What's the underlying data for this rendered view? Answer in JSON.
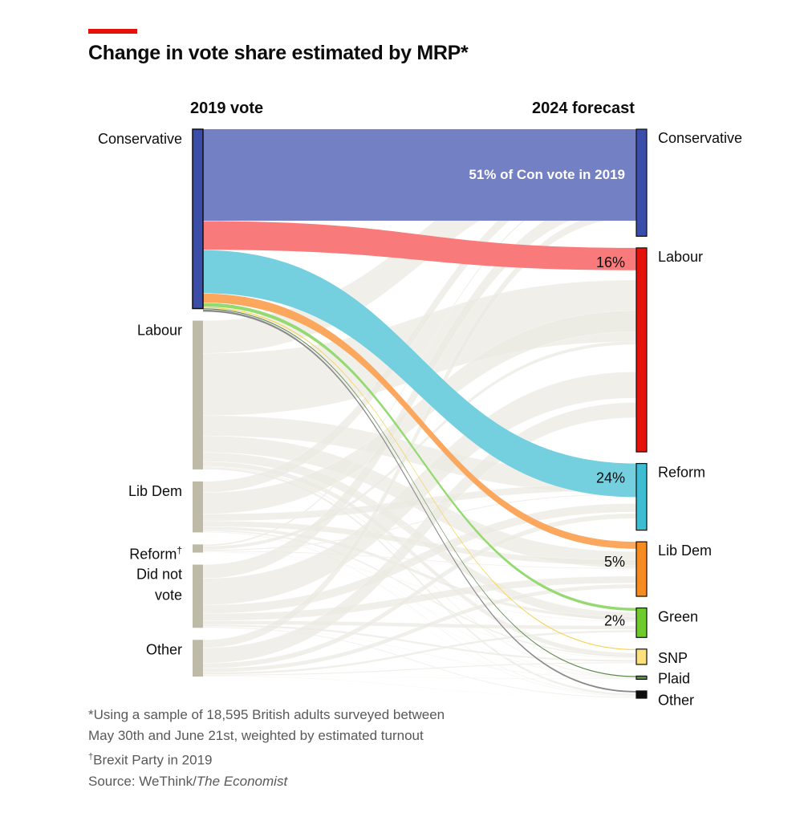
{
  "title": "Change in vote share estimated by MRP*",
  "chart_data": {
    "type": "sankey",
    "title": "Change in vote share estimated by MRP*",
    "left_header": "2019 vote",
    "right_header": "2024 forecast",
    "units": "share of 2019 Conservative voters (%)",
    "left_nodes": [
      {
        "id": "con19",
        "label": "Conservative",
        "value": 44,
        "color": "#3a4da8",
        "highlight": true
      },
      {
        "id": "lab19",
        "label": "Labour",
        "value": 36.5,
        "color": "#bdbaa8"
      },
      {
        "id": "ld19",
        "label": "Lib Dem",
        "value": 12.5,
        "color": "#bdbaa8"
      },
      {
        "id": "ref19",
        "label": "Reform",
        "label_sup": "†",
        "value": 2,
        "color": "#bdbaa8"
      },
      {
        "id": "dnv19",
        "label": "Did not vote",
        "label_lines": [
          "Did not",
          "vote"
        ],
        "value": 15.5,
        "color": "#bdbaa8"
      },
      {
        "id": "oth19",
        "label": "Other",
        "value": 9,
        "color": "#bdbaa8"
      }
    ],
    "right_nodes": [
      {
        "id": "con24",
        "label": "Conservative",
        "value": 26.5,
        "color": "#3a4da8"
      },
      {
        "id": "lab24",
        "label": "Labour",
        "value": 50.5,
        "color": "#e3120b"
      },
      {
        "id": "ref24",
        "label": "Reform",
        "value": 16.5,
        "color": "#3ebcd2"
      },
      {
        "id": "ld24",
        "label": "Lib Dem",
        "value": 13.5,
        "color": "#f68b1f"
      },
      {
        "id": "grn24",
        "label": "Green",
        "value": 7.3,
        "color": "#6fcb2d"
      },
      {
        "id": "snp24",
        "label": "SNP",
        "value": 3.8,
        "color": "#fce17e"
      },
      {
        "id": "pc24",
        "label": "Plaid",
        "value": 0.8,
        "color": "#559941"
      },
      {
        "id": "oth24",
        "label": "Other",
        "value": 1.8,
        "color": "#0d0d0d"
      }
    ],
    "highlight_flows": [
      {
        "from": "con19",
        "to": "con24",
        "percent": 51,
        "label": "51% of Con vote in 2019",
        "color": "#7380c4"
      },
      {
        "from": "con19",
        "to": "lab24",
        "percent": 16,
        "label": "16%",
        "color": "#f97a7a"
      },
      {
        "from": "con19",
        "to": "ref24",
        "percent": 24,
        "label": "24%",
        "color": "#74cfdf"
      },
      {
        "from": "con19",
        "to": "ld24",
        "percent": 5,
        "label": "5%",
        "color": "#fca75e"
      },
      {
        "from": "con19",
        "to": "grn24",
        "percent": 2,
        "label": "2%",
        "color": "#95d971"
      },
      {
        "from": "con19",
        "to": "snp24",
        "percent": 0.5,
        "label": "",
        "color": "#f7d150"
      },
      {
        "from": "con19",
        "to": "pc24",
        "percent": 0.4,
        "label": "",
        "color": "#5c8a4c"
      },
      {
        "from": "con19",
        "to": "oth24",
        "percent": 1.1,
        "label": "",
        "color": "#8a8a8a"
      }
    ],
    "background_flow_color": "#ebe9e1"
  },
  "footnotes": {
    "line1": "*Using a sample of 18,595 British adults surveyed between",
    "line2": "May 30th and June 21st, weighted by estimated turnout",
    "dagger": "†",
    "line3": "Brexit Party in 2019",
    "source_prefix": "Source: WeThink/",
    "source_italic": "The Economist"
  }
}
